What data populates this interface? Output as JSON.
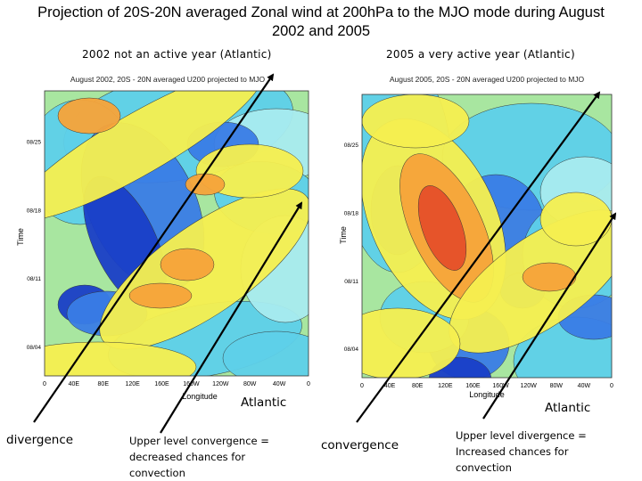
{
  "slide": {
    "title_line1": "Projection of 20S-20N averaged Zonal wind at 200hPa to the MJO mode during August",
    "title_line2": "2002 and 2005"
  },
  "subtitles": {
    "left": "2002 not an active year (Atlantic)",
    "right": "2005 a very active year (Atlantic)"
  },
  "annotations": {
    "atlantic_left": "Atlantic",
    "atlantic_right": "Atlantic",
    "divergence": "divergence",
    "upper_conv_line1": "Upper level convergence =",
    "upper_conv_line2": "decreased chances for",
    "upper_conv_line3": "convection",
    "convergence": "convergence",
    "upper_div_line1": "Upper level divergence =",
    "upper_div_line2": "Increased chances for",
    "upper_div_line3": "convection"
  },
  "colors": {
    "blue_dark": "#1a3fc8",
    "blue": "#3a7de6",
    "cyan": "#5ed0ea",
    "light_cyan": "#a8ecf0",
    "green": "#a8e6a0",
    "yellow": "#f6f050",
    "orange": "#f7a43a",
    "red": "#e6502a"
  },
  "chart_data": [
    {
      "type": "heatmap",
      "title": "August 2002, 20S - 20N averaged U200 projected to MJO",
      "xlabel": "Longitude",
      "ylabel": "Time",
      "x_ticks": [
        "0",
        "40E",
        "80E",
        "120E",
        "160E",
        "160W",
        "120W",
        "80W",
        "40W",
        "0"
      ],
      "y_ticks": [
        "08/04",
        "08/11",
        "08/18",
        "08/25"
      ]
    },
    {
      "type": "heatmap",
      "title": "August 2005, 20S - 20N averaged U200 projected to MJO",
      "xlabel": "Longitude",
      "ylabel": "Time",
      "x_ticks": [
        "0",
        "40E",
        "80E",
        "120E",
        "160E",
        "160W",
        "120W",
        "80W",
        "40W",
        "0"
      ],
      "y_ticks": [
        "08/04",
        "08/11",
        "08/18",
        "08/25"
      ]
    }
  ]
}
